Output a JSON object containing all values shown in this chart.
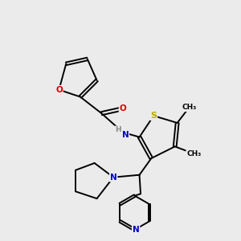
{
  "bg_color": "#ebebeb",
  "atom_colors": {
    "C": "#000000",
    "N": "#0000cc",
    "O": "#dd0000",
    "S": "#bbaa00",
    "H": "#888888"
  },
  "bond_color": "#000000",
  "bond_width": 1.4,
  "dbo": 0.055
}
